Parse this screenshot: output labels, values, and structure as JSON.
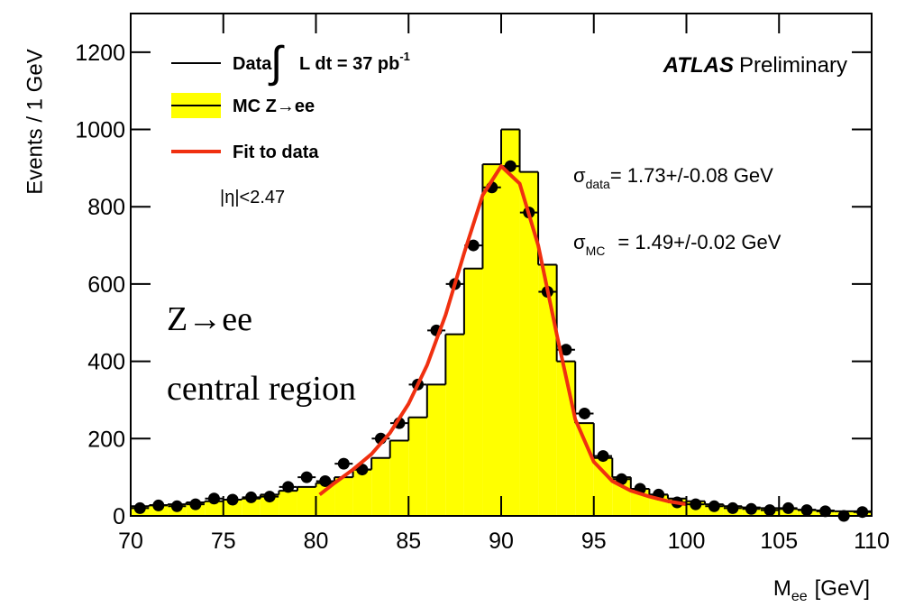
{
  "chart_data": {
    "type": "histogram",
    "y_label": "Events / 1 GeV",
    "x_label": "M",
    "x_label_sub": "ee",
    "x_label_unit": "[GeV]",
    "xlim": [
      70,
      110
    ],
    "ylim": [
      0,
      1300
    ],
    "xticks": [
      70,
      75,
      80,
      85,
      90,
      95,
      100,
      105,
      110
    ],
    "yticks": [
      0,
      200,
      400,
      600,
      800,
      1000,
      1200
    ],
    "bins": [
      70,
      71,
      72,
      73,
      74,
      75,
      76,
      77,
      78,
      79,
      80,
      81,
      82,
      83,
      84,
      85,
      86,
      87,
      88,
      89,
      90,
      91,
      92,
      93,
      94,
      95,
      96,
      97,
      98,
      99,
      100,
      101,
      102,
      103,
      104,
      105,
      106,
      107,
      108,
      109,
      110
    ],
    "series": [
      {
        "name": "MC Z→ee",
        "type": "histogram",
        "color": "#ffff00",
        "values": [
          25,
          28,
          30,
          35,
          38,
          42,
          45,
          55,
          65,
          75,
          85,
          100,
          120,
          150,
          195,
          255,
          340,
          470,
          640,
          910,
          1000,
          890,
          650,
          400,
          240,
          150,
          100,
          70,
          55,
          45,
          38,
          30,
          25,
          22,
          20,
          18,
          16,
          14,
          12,
          12
        ]
      },
      {
        "name": "Data",
        "type": "scatter",
        "color": "#000000",
        "x": [
          70.5,
          71.5,
          72.5,
          73.5,
          74.5,
          75.5,
          76.5,
          77.5,
          78.5,
          79.5,
          80.5,
          81.5,
          82.5,
          83.5,
          84.5,
          85.5,
          86.5,
          87.5,
          88.5,
          89.5,
          90.5,
          91.5,
          92.5,
          93.5,
          94.5,
          95.5,
          96.5,
          97.5,
          98.5,
          99.5,
          100.5,
          101.5,
          102.5,
          103.5,
          104.5,
          105.5,
          106.5,
          107.5,
          108.5,
          109.5
        ],
        "values": [
          20,
          27,
          25,
          30,
          45,
          42,
          48,
          50,
          75,
          100,
          90,
          135,
          120,
          200,
          240,
          340,
          480,
          600,
          700,
          850,
          905,
          785,
          580,
          430,
          265,
          155,
          95,
          70,
          55,
          35,
          30,
          25,
          20,
          18,
          15,
          20,
          15,
          12,
          0,
          10
        ]
      },
      {
        "name": "Fit to data",
        "type": "line",
        "color": "#f03010",
        "x": [
          80.2,
          81,
          82,
          83,
          84,
          85,
          86,
          87,
          88,
          89,
          90,
          91,
          92,
          93,
          94,
          95,
          96,
          97,
          98,
          99,
          100
        ],
        "values": [
          55,
          85,
          120,
          160,
          215,
          290,
          390,
          520,
          680,
          830,
          905,
          860,
          700,
          470,
          250,
          140,
          90,
          65,
          50,
          38,
          30
        ]
      }
    ],
    "annotations": {
      "lumi_prefix": "∫",
      "lumi": "L dt = 37 pb",
      "lumi_sup": "-1",
      "eta": "|η|<2.47",
      "atlas": "ATLAS",
      "preliminary": "Preliminary",
      "sigma": "σ",
      "sigma_data_sub": "data",
      "sigma_data": "= 1.73+/-0.08 GeV",
      "sigma_mc_sub": "MC",
      "sigma_mc": "= 1.49+/-0.02 GeV",
      "channel": "Z→ee",
      "region": "central region"
    }
  }
}
